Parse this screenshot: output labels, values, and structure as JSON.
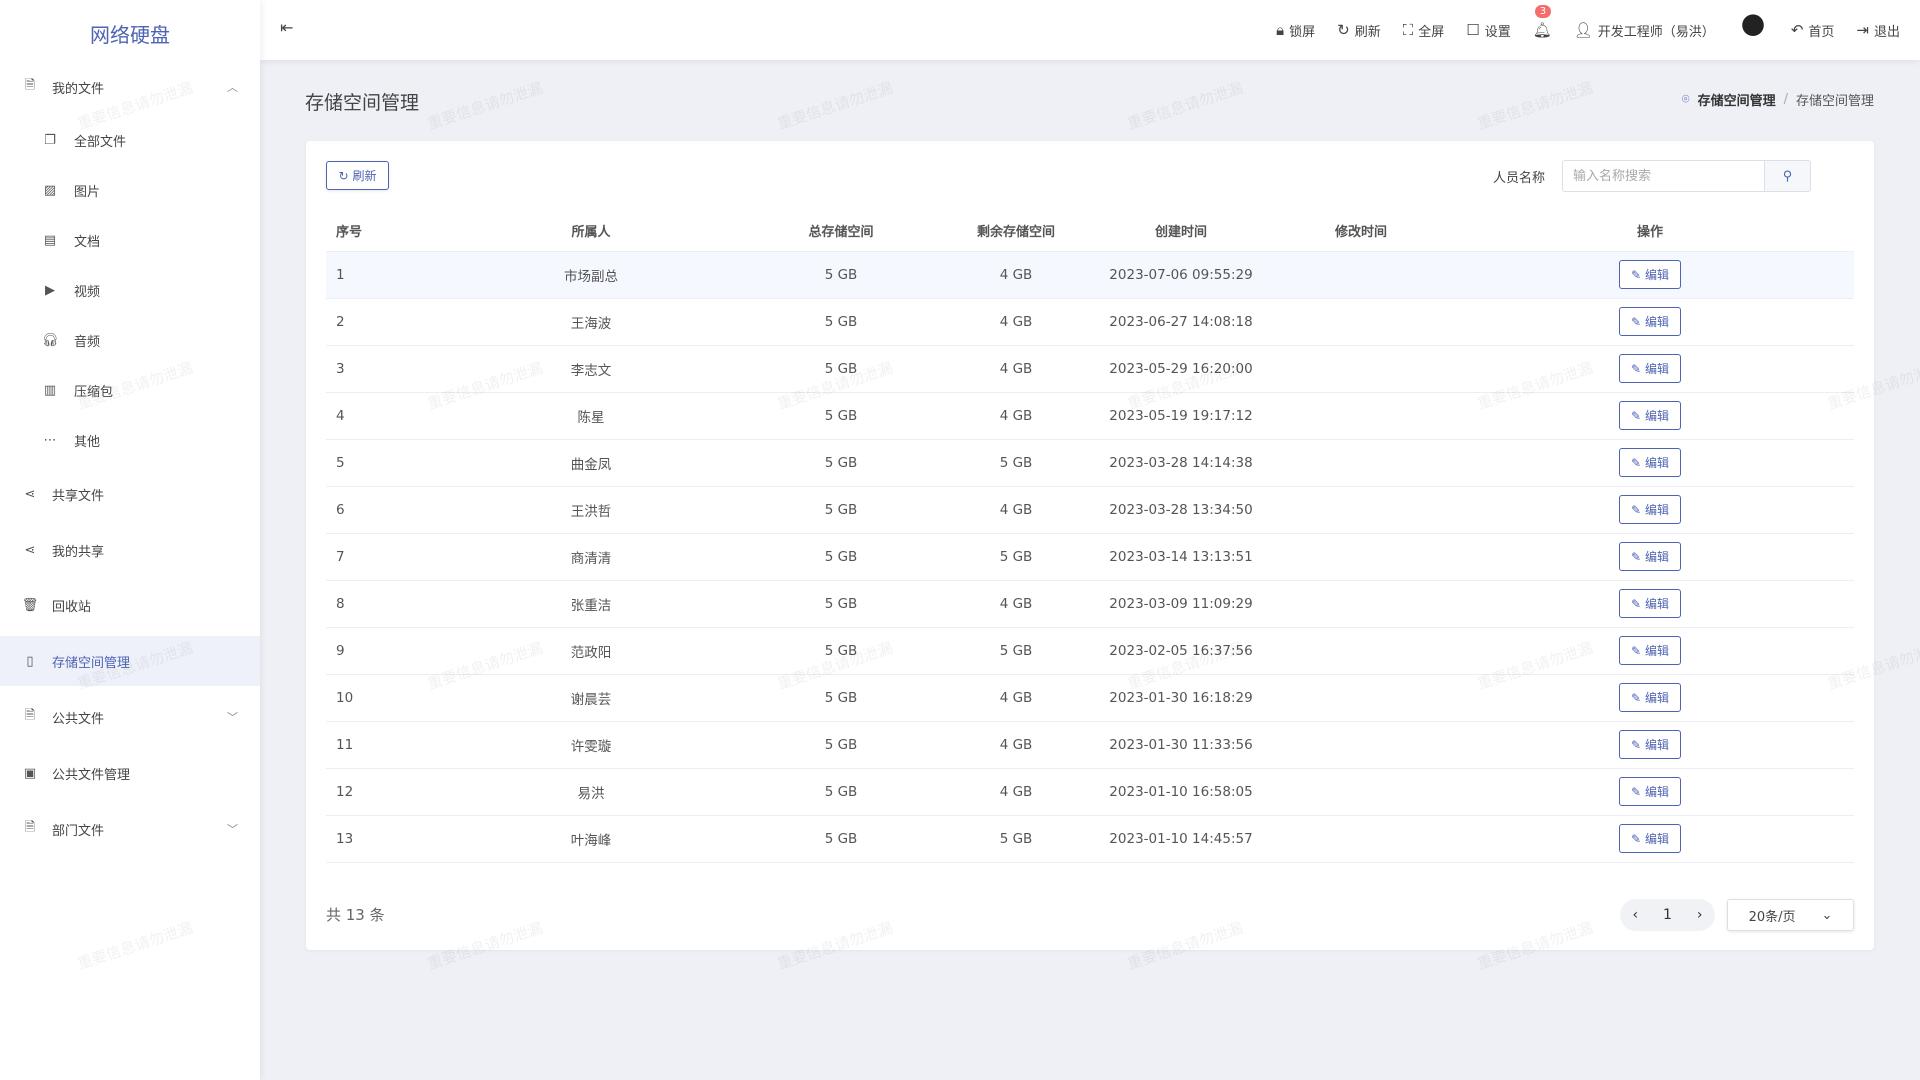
{
  "app": {
    "title": "网络硬盘",
    "watermark": "重要信息请勿泄漏"
  },
  "sidebar": {
    "items": [
      {
        "label": "我的文件",
        "icon": "file-icon",
        "chevron": "up",
        "sub": false
      },
      {
        "label": "全部文件",
        "icon": "files-icon",
        "sub": true
      },
      {
        "label": "图片",
        "icon": "image-icon",
        "sub": true
      },
      {
        "label": "文档",
        "icon": "document-icon",
        "sub": true
      },
      {
        "label": "视频",
        "icon": "video-icon",
        "sub": true
      },
      {
        "label": "音频",
        "icon": "headphones-icon",
        "sub": true
      },
      {
        "label": "压缩包",
        "icon": "archive-icon",
        "sub": true
      },
      {
        "label": "其他",
        "icon": "more-icon",
        "sub": true
      },
      {
        "label": "共享文件",
        "icon": "share-icon",
        "sub": false
      },
      {
        "label": "我的共享",
        "icon": "share-icon",
        "sub": false
      },
      {
        "label": "回收站",
        "icon": "trash-icon",
        "sub": false
      },
      {
        "label": "存储空间管理",
        "icon": "storage-icon",
        "sub": false,
        "active": true
      },
      {
        "label": "公共文件",
        "icon": "file-icon",
        "chevron": "down",
        "sub": false
      },
      {
        "label": "公共文件管理",
        "icon": "folder-icon",
        "sub": false
      },
      {
        "label": "部门文件",
        "icon": "file-icon",
        "chevron": "down",
        "sub": false
      }
    ]
  },
  "header": {
    "lock": "锁屏",
    "refresh": "刷新",
    "fullscreen": "全屏",
    "settings": "设置",
    "notifications": "3",
    "user": "开发工程师（易洪）",
    "home": "首页",
    "logout": "退出"
  },
  "page": {
    "title": "存储空间管理",
    "breadcrumb": [
      "存储空间管理",
      "存储空间管理"
    ]
  },
  "toolbar": {
    "refresh": "刷新",
    "search_label": "人员名称",
    "search_placeholder": "输入名称搜索",
    "search_value": ""
  },
  "table": {
    "columns": [
      "序号",
      "所属人",
      "总存储空间",
      "剩余存储空间",
      "创建时间",
      "修改时间",
      "操作"
    ],
    "edit_label": "编辑",
    "rows": [
      [
        "1",
        "市场副总",
        "5 GB",
        "4 GB",
        "2023-07-06 09:55:29",
        ""
      ],
      [
        "2",
        "王海波",
        "5 GB",
        "4 GB",
        "2023-06-27 14:08:18",
        ""
      ],
      [
        "3",
        "李志文",
        "5 GB",
        "4 GB",
        "2023-05-29 16:20:00",
        ""
      ],
      [
        "4",
        "陈星",
        "5 GB",
        "4 GB",
        "2023-05-19 19:17:12",
        ""
      ],
      [
        "5",
        "曲金凤",
        "5 GB",
        "5 GB",
        "2023-03-28 14:14:38",
        ""
      ],
      [
        "6",
        "王洪哲",
        "5 GB",
        "4 GB",
        "2023-03-28 13:34:50",
        ""
      ],
      [
        "7",
        "商清清",
        "5 GB",
        "5 GB",
        "2023-03-14 13:13:51",
        ""
      ],
      [
        "8",
        "张重洁",
        "5 GB",
        "4 GB",
        "2023-03-09 11:09:29",
        ""
      ],
      [
        "9",
        "范政阳",
        "5 GB",
        "5 GB",
        "2023-02-05 16:37:56",
        ""
      ],
      [
        "10",
        "谢晨芸",
        "5 GB",
        "4 GB",
        "2023-01-30 16:18:29",
        ""
      ],
      [
        "11",
        "许雯璇",
        "5 GB",
        "4 GB",
        "2023-01-30 11:33:56",
        ""
      ],
      [
        "12",
        "易洪",
        "5 GB",
        "4 GB",
        "2023-01-10 16:58:05",
        ""
      ],
      [
        "13",
        "叶海峰",
        "5 GB",
        "5 GB",
        "2023-01-10 14:45:57",
        ""
      ]
    ]
  },
  "pagination": {
    "total": "共 13 条",
    "current": "1",
    "page_size": "20条/页"
  }
}
